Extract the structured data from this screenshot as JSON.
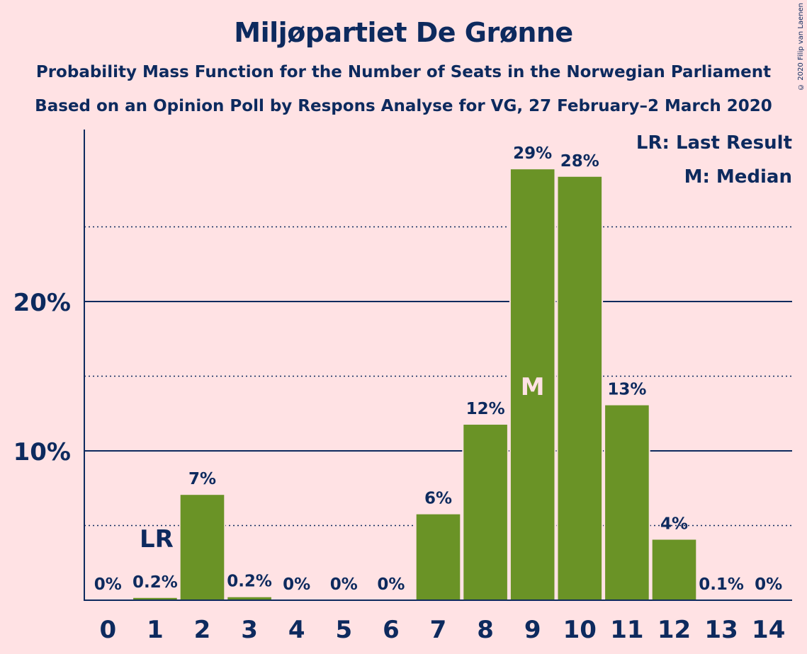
{
  "chart_data": {
    "type": "bar",
    "title": "Miljøpartiet De Grønne",
    "subtitle_1": "Probability Mass Function for the Number of Seats in the Norwegian Parliament",
    "subtitle_2": "Based on an Opinion Poll by Respons Analyse for VG, 27 February–2 March 2020",
    "categories": [
      "0",
      "1",
      "2",
      "3",
      "4",
      "5",
      "6",
      "7",
      "8",
      "9",
      "10",
      "11",
      "12",
      "13",
      "14"
    ],
    "values": [
      0,
      0.2,
      7.1,
      0.25,
      0,
      0,
      0,
      5.8,
      11.8,
      28.9,
      28.4,
      13.1,
      4.1,
      0.05,
      0
    ],
    "value_labels": [
      "0%",
      "0.2%",
      "7%",
      "0.2%",
      "0%",
      "0%",
      "0%",
      "6%",
      "12%",
      "29%",
      "28%",
      "13%",
      "4%",
      "0.1%",
      "0%"
    ],
    "ylim": [
      0,
      31.5
    ],
    "y_ticks": [
      {
        "value": 10,
        "label": "10%"
      },
      {
        "value": 20,
        "label": "20%"
      }
    ],
    "minor_gridlines": [
      5,
      15,
      25
    ],
    "last_result_seat": "1",
    "median_seat": "9",
    "last_result_marker": "LR",
    "median_marker": "M",
    "legend": [
      "LR: Last Result",
      "M: Median"
    ],
    "legend_position": "top-right",
    "grid": true,
    "colors": {
      "background": "#FFE2E4",
      "bar": "#6A9326",
      "text": "#0D2A5E",
      "median_text": "#FFE2E4"
    }
  },
  "copyright": "© 2020 Filip van Laenen"
}
